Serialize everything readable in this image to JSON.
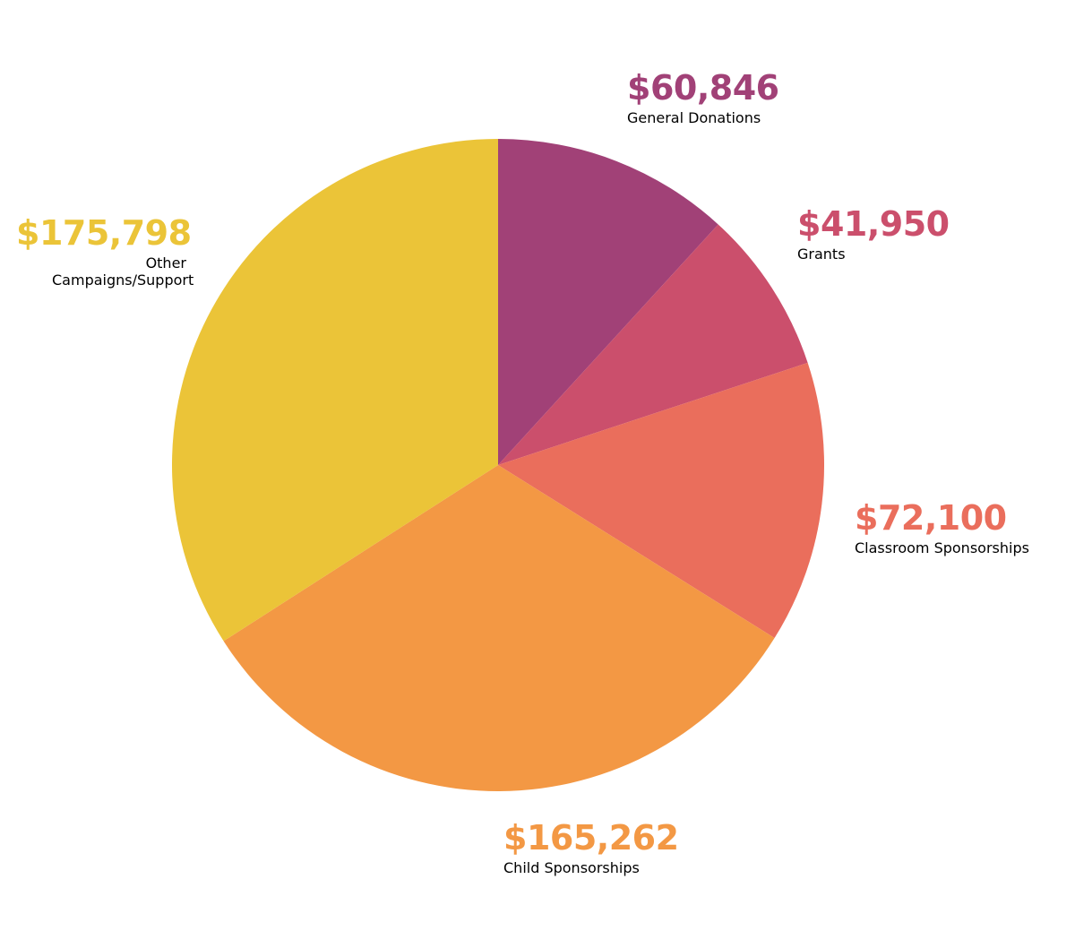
{
  "chart_data": {
    "type": "pie",
    "slices": [
      {
        "label": "General Donations",
        "amount_text": "$60,846",
        "value": 60846,
        "color": "#A14177"
      },
      {
        "label": "Grants",
        "amount_text": "$41,950",
        "value": 41950,
        "color": "#CB4F6C"
      },
      {
        "label": "Classroom Sponsorships",
        "amount_text": "$72,100",
        "value": 72100,
        "color": "#EA6E5C"
      },
      {
        "label": "Child Sponsorships",
        "amount_text": "$165,262",
        "value": 165262,
        "color": "#F39844"
      },
      {
        "label": "Other Campaigns/Support",
        "amount_text": "$175,798",
        "value": 175798,
        "color": "#EBC438"
      }
    ]
  }
}
